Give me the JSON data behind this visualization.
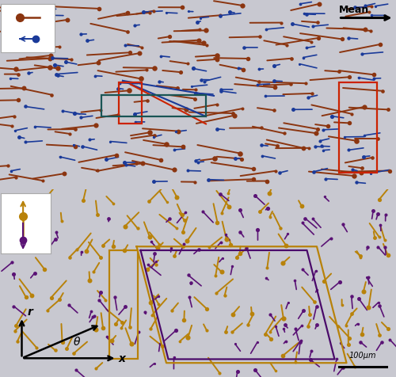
{
  "fig_width": 5.0,
  "fig_height": 4.76,
  "dpi": 100,
  "bg_color": "#c8c8d0",
  "top_panel": {
    "fast_color": "#8B3510",
    "slow_color": "#1a3a99",
    "n_fast": 130,
    "n_slow": 110,
    "seed_fast": 42,
    "seed_slow": 17
  },
  "bottom_panel": {
    "up_color": "#b8820a",
    "down_color": "#5a1275",
    "n_up": 125,
    "n_down": 105,
    "seed_up": 77,
    "seed_down": 33
  },
  "mean_text": "Mean",
  "scale_text": "100μm"
}
